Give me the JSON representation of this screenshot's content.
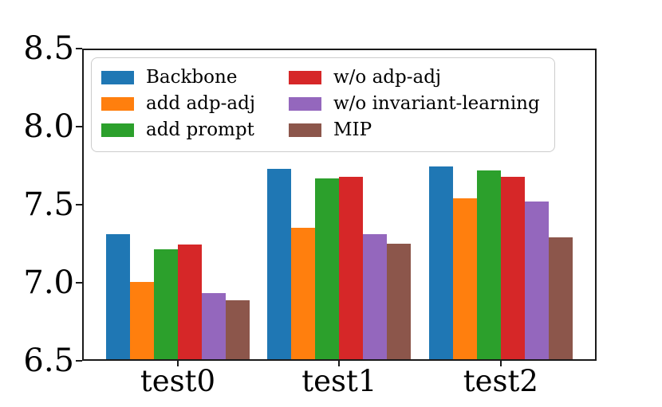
{
  "chart_data": {
    "type": "bar",
    "title": "",
    "xlabel": "",
    "ylabel": "",
    "categories": [
      "test0",
      "test1",
      "test2"
    ],
    "series": [
      {
        "name": "Backbone",
        "color": "#1f77b4",
        "values": [
          7.31,
          7.73,
          7.75
        ]
      },
      {
        "name": "add adp-adj",
        "color": "#ff7f0e",
        "values": [
          7.0,
          7.35,
          7.54
        ]
      },
      {
        "name": "add prompt",
        "color": "#2ca02c",
        "values": [
          7.21,
          7.67,
          7.72
        ]
      },
      {
        "name": "w/o adp-adj",
        "color": "#d62728",
        "values": [
          7.24,
          7.68,
          7.68
        ]
      },
      {
        "name": "w/o invariant-learning",
        "color": "#9467bd",
        "values": [
          6.93,
          7.31,
          7.52
        ]
      },
      {
        "name": "MIP",
        "color": "#8c564b",
        "values": [
          6.88,
          7.25,
          7.29
        ]
      }
    ],
    "ylim": [
      6.5,
      8.5
    ],
    "yticks": [
      "6.5",
      "7.0",
      "7.5",
      "8.0",
      "8.5"
    ],
    "grid": false,
    "legend_position": "upper left",
    "legend_columns": 2,
    "spine_color": "#1a1a1a",
    "background_color": "#ffffff"
  }
}
